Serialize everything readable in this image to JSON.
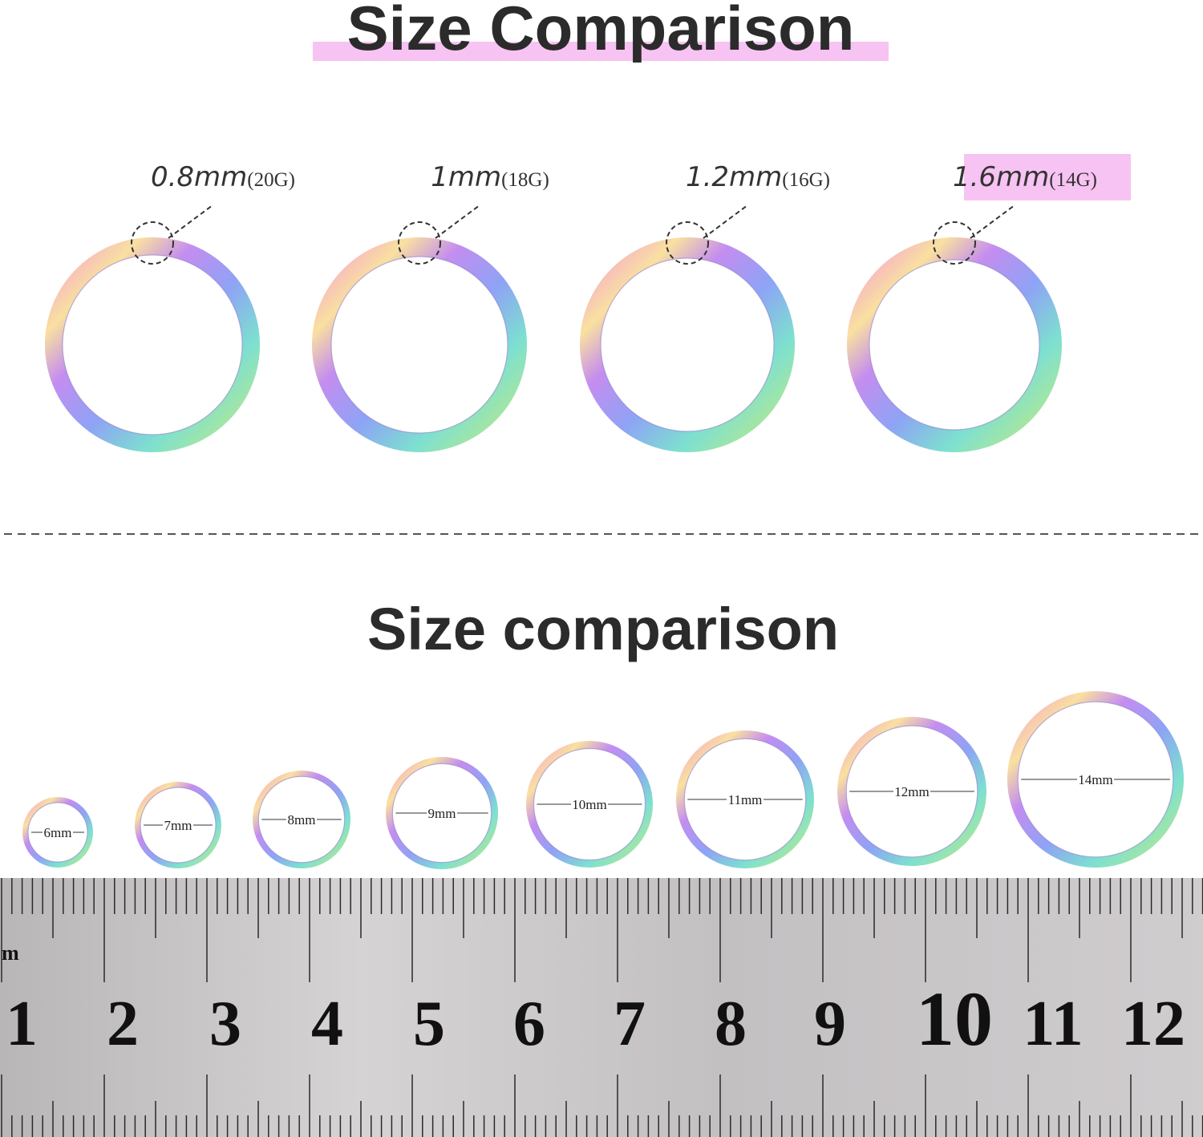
{
  "header": {
    "title": "Size Comparison"
  },
  "gauges": [
    {
      "thickness": "0.8mm",
      "gauge": "(20G)"
    },
    {
      "thickness": "1mm",
      "gauge": "(18G)"
    },
    {
      "thickness": "1.2mm",
      "gauge": "(16G)"
    },
    {
      "thickness": "1.6mm",
      "gauge": "(14G)"
    }
  ],
  "sizes": {
    "title": "Size comparison",
    "rings": [
      "6mm",
      "7mm",
      "8mm",
      "9mm",
      "10mm",
      "11mm",
      "12mm",
      "14mm"
    ]
  },
  "ruler": {
    "unit": "m",
    "numbers": [
      "1",
      "2",
      "3",
      "4",
      "5",
      "6",
      "7",
      "8",
      "9",
      "10",
      "11",
      "12"
    ]
  }
}
